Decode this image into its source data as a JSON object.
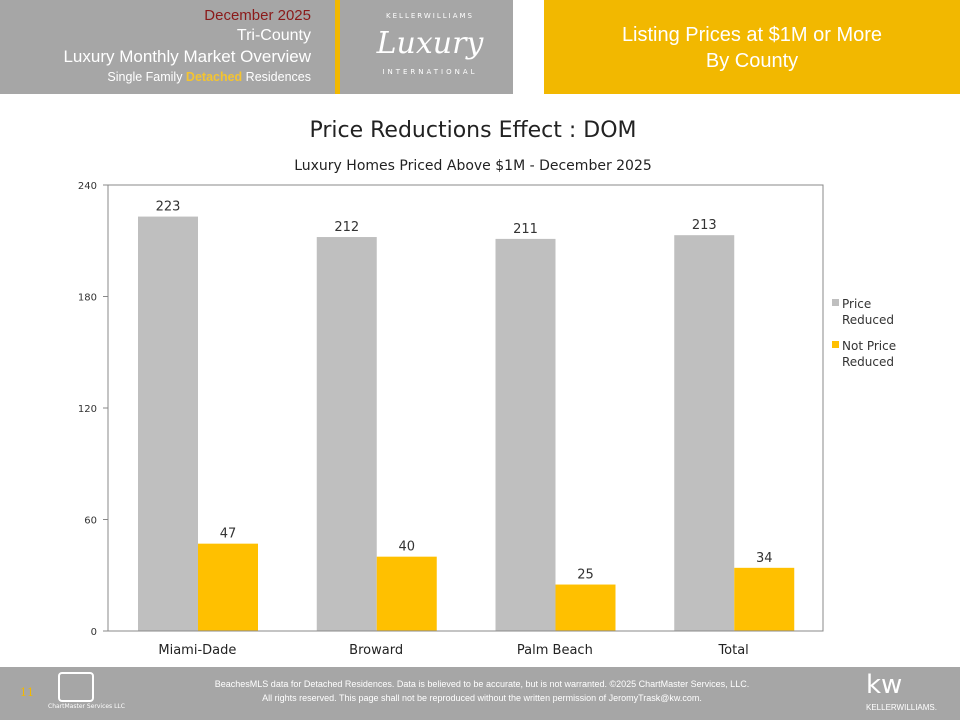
{
  "header": {
    "date": "December 2025",
    "region": "Tri-County",
    "report": "Luxury Monthly Market Overview",
    "segment_pre": "Single Family ",
    "segment_highlight": "Detached",
    "segment_post": " Residences",
    "logo": {
      "top": "KELLERWILLIAMS",
      "main": "Luxury",
      "bottom": "INTERNATIONAL"
    },
    "right_line1": "Listing Prices at $1M or More",
    "right_line2": "By County"
  },
  "chart_data": {
    "type": "bar",
    "title": "Price Reductions Effect : DOM",
    "subtitle": "Luxury Homes Priced Above $1M - December 2025",
    "categories": [
      "Miami-Dade",
      "Broward",
      "Palm Beach",
      "Total"
    ],
    "series": [
      {
        "name": "Price Reduced",
        "color": "#bfbfbf",
        "values": [
          223,
          212,
          211,
          213
        ]
      },
      {
        "name": "Not Price Reduced",
        "color": "#ffc000",
        "values": [
          47,
          40,
          25,
          34
        ]
      }
    ],
    "ylim": [
      0,
      240
    ],
    "yticks": [
      "0",
      "60",
      "120",
      "180",
      "240"
    ],
    "legend": "right",
    "grid": false
  },
  "legend": {
    "l0a": "Price",
    "l0b": "Reduced",
    "l1a": "Not Price",
    "l1b": "Reduced"
  },
  "footer": {
    "page": "11",
    "chartmaster": "ChartMaster Services LLC",
    "line1": "BeachesMLS data for Detached Residences.  Data is believed to be accurate, but is not warranted.   ©2025  ChartMaster Services, LLC.",
    "line2": "All rights reserved. This page shall not be reproduced without the written permission of JeromyTrask@kw.com.",
    "kw": "kw",
    "kw_name": "KELLERWILLIAMS."
  }
}
